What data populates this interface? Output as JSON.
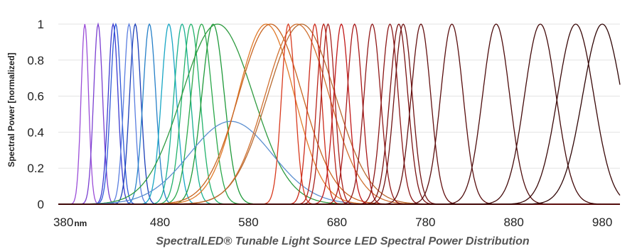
{
  "chart_data": {
    "type": "line",
    "title": "SpectralLED® Tunable Light Source LED Spectral Power Distribution",
    "xlabel": "",
    "ylabel": "Spectral Power [normalized]",
    "x_unit_label": "nm",
    "xlim": [
      365,
      1000
    ],
    "ylim": [
      0,
      1
    ],
    "x_ticks": [
      380,
      480,
      580,
      680,
      780,
      880,
      980
    ],
    "y_ticks": [
      0,
      0.2,
      0.4,
      0.6,
      0.8,
      1
    ],
    "y_tick_labels": [
      "0",
      "0.2",
      "0.4",
      "0.6",
      "0.8",
      "1"
    ],
    "grid": {
      "horizontal": true,
      "vertical": false
    },
    "legend": "none",
    "series": [
      {
        "color": "#9b4dd8",
        "peak_nm": 395,
        "fwhm_nm": 10,
        "peak": 1.0
      },
      {
        "color": "#7b3fd1",
        "peak_nm": 410,
        "fwhm_nm": 12,
        "peak": 1.0
      },
      {
        "color": "#3a3ad0",
        "peak_nm": 427,
        "fwhm_nm": 13,
        "peak": 1.0
      },
      {
        "color": "#2f58d8",
        "peak_nm": 430,
        "fwhm_nm": 14,
        "peak": 1.0
      },
      {
        "color": "#5a7ee0",
        "peak_nm": 445,
        "fwhm_nm": 14,
        "peak": 1.0
      },
      {
        "color": "#1c3fb8",
        "peak_nm": 452,
        "fwhm_nm": 15,
        "peak": 1.0
      },
      {
        "color": "#2680c8",
        "peak_nm": 468,
        "fwhm_nm": 17,
        "peak": 1.0
      },
      {
        "color": "#17a6c4",
        "peak_nm": 490,
        "fwhm_nm": 20,
        "peak": 1.0
      },
      {
        "color": "#18b090",
        "peak_nm": 505,
        "fwhm_nm": 22,
        "peak": 1.0
      },
      {
        "color": "#22b26a",
        "peak_nm": 515,
        "fwhm_nm": 24,
        "peak": 1.0
      },
      {
        "color": "#2aa84a",
        "peak_nm": 527,
        "fwhm_nm": 28,
        "peak": 1.0
      },
      {
        "color": "#1f9a3a",
        "peak_nm": 540,
        "fwhm_nm": 30,
        "peak": 1.0
      },
      {
        "color": "#2d9a3f",
        "peak_nm": 545,
        "fwhm_nm": 95,
        "peak": 1.0
      },
      {
        "color": "#5b8fd0",
        "peak_nm": 560,
        "fwhm_nm": 110,
        "peak": 0.46
      },
      {
        "color": "#e07a2a",
        "peak_nm": 600,
        "fwhm_nm": 75,
        "peak": 1.0
      },
      {
        "color": "#c86420",
        "peak_nm": 605,
        "fwhm_nm": 85,
        "peak": 1.0
      },
      {
        "color": "#d07030",
        "peak_nm": 635,
        "fwhm_nm": 85,
        "peak": 1.0
      },
      {
        "color": "#b86a30",
        "peak_nm": 640,
        "fwhm_nm": 90,
        "peak": 1.0
      },
      {
        "color": "#d83a1e",
        "peak_nm": 625,
        "fwhm_nm": 18,
        "peak": 1.0
      },
      {
        "color": "#cc2a1a",
        "peak_nm": 655,
        "fwhm_nm": 18,
        "peak": 1.0
      },
      {
        "color": "#b82218",
        "peak_nm": 665,
        "fwhm_nm": 18,
        "peak": 1.0
      },
      {
        "color": "#a8201c",
        "peak_nm": 670,
        "fwhm_nm": 18,
        "peak": 1.0
      },
      {
        "color": "#c01818",
        "peak_nm": 685,
        "fwhm_nm": 20,
        "peak": 1.0
      },
      {
        "color": "#a81818",
        "peak_nm": 700,
        "fwhm_nm": 20,
        "peak": 1.0
      },
      {
        "color": "#901818",
        "peak_nm": 720,
        "fwhm_nm": 22,
        "peak": 1.0
      },
      {
        "color": "#8a1616",
        "peak_nm": 740,
        "fwhm_nm": 22,
        "peak": 1.0
      },
      {
        "color": "#7a1212",
        "peak_nm": 750,
        "fwhm_nm": 24,
        "peak": 1.0
      },
      {
        "color": "#701212",
        "peak_nm": 755,
        "fwhm_nm": 24,
        "peak": 1.0
      },
      {
        "color": "#641010",
        "peak_nm": 775,
        "fwhm_nm": 26,
        "peak": 1.0
      },
      {
        "color": "#5a0e0e",
        "peak_nm": 810,
        "fwhm_nm": 30,
        "peak": 1.0
      },
      {
        "color": "#4e0c0c",
        "peak_nm": 860,
        "fwhm_nm": 36,
        "peak": 1.0
      },
      {
        "color": "#440a0a",
        "peak_nm": 910,
        "fwhm_nm": 42,
        "peak": 1.0
      },
      {
        "color": "#3a0808",
        "peak_nm": 950,
        "fwhm_nm": 48,
        "peak": 1.0
      },
      {
        "color": "#300606",
        "peak_nm": 980,
        "fwhm_nm": 52,
        "peak": 1.0
      }
    ]
  }
}
